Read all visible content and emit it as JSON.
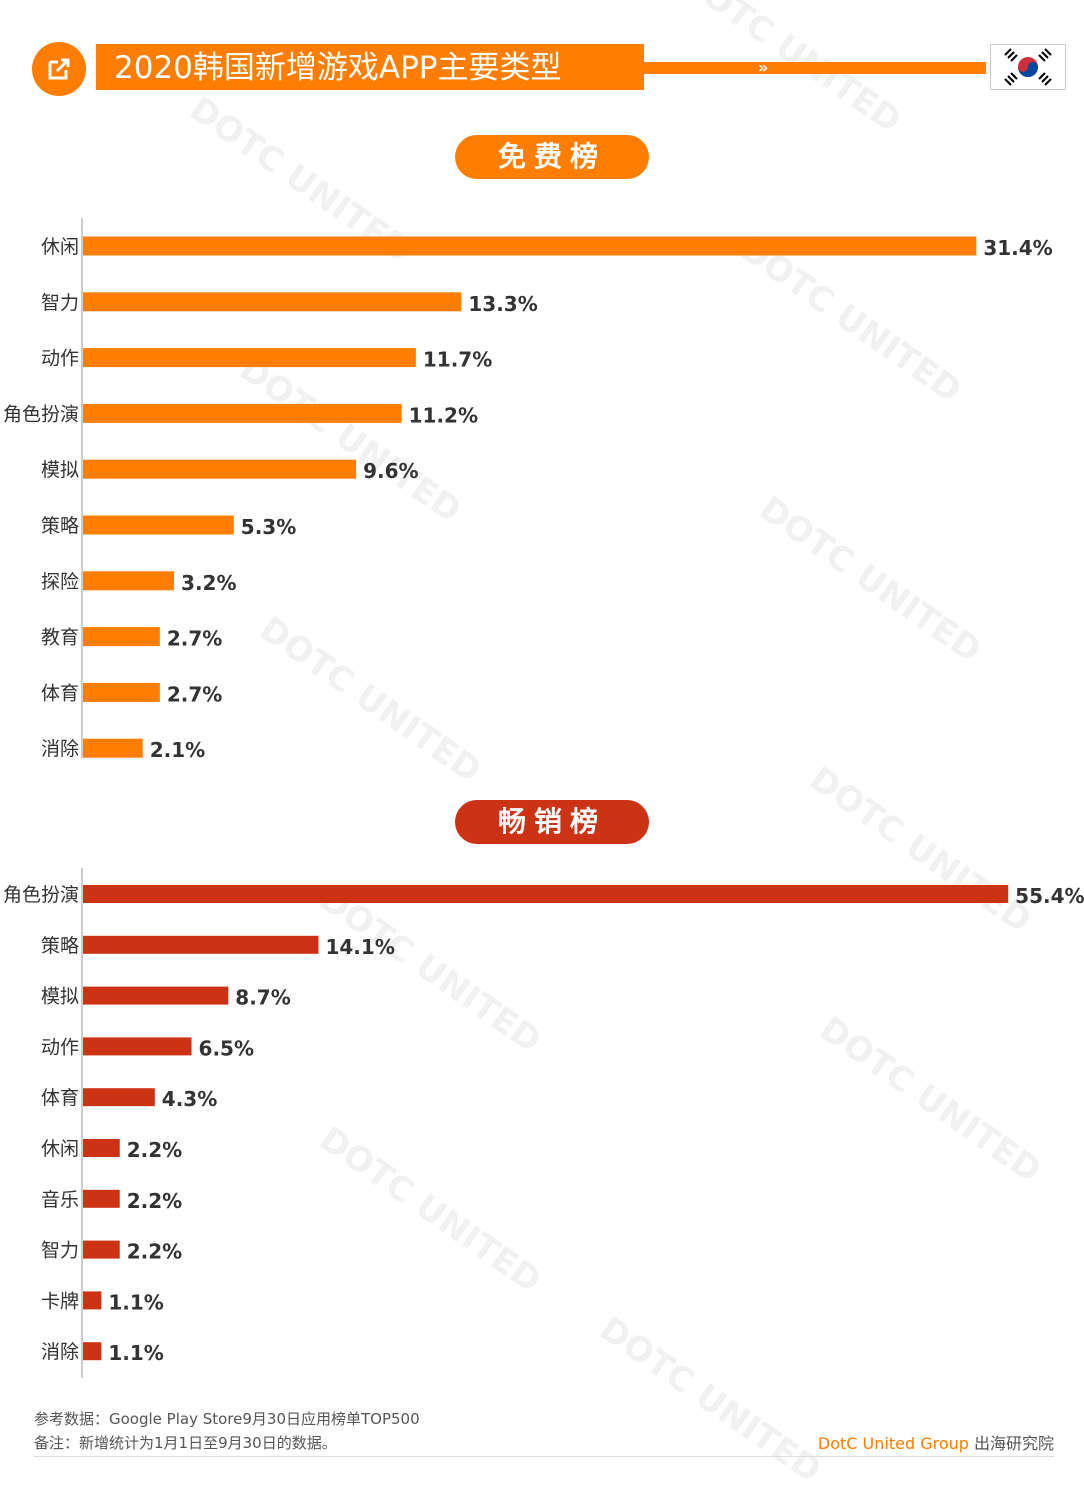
{
  "title": "2020韩国新增游戏APP主要类型",
  "colors": {
    "free": "#ff7d00",
    "gross": "#cc3314",
    "axis": "#cccccc",
    "label": "#333333"
  },
  "watermark": "DOTC UNITED",
  "footer": {
    "source": "参考数据：Google Play Store9月30日应用榜单TOP500",
    "note": "备注：新增统计为1月1日至9月30日的数据。",
    "brand": "DotC United Group",
    "brand_suffix": " 出海研究院"
  },
  "chart_data": [
    {
      "type": "bar",
      "orientation": "horizontal",
      "title": "免费榜",
      "categories": [
        "休闲",
        "智力",
        "动作",
        "角色扮演",
        "模拟",
        "策略",
        "探险",
        "教育",
        "体育",
        "消除"
      ],
      "values": [
        31.4,
        13.3,
        11.7,
        11.2,
        9.6,
        5.3,
        3.2,
        2.7,
        2.7,
        2.1
      ],
      "value_labels": [
        "31.4%",
        "13.3%",
        "11.7%",
        "11.2%",
        "9.6%",
        "5.3%",
        "3.2%",
        "2.7%",
        "2.7%",
        "2.1%"
      ],
      "unit": "%",
      "grid": false,
      "legend": "none"
    },
    {
      "type": "bar",
      "orientation": "horizontal",
      "title": "畅销榜",
      "categories": [
        "角色扮演",
        "策略",
        "模拟",
        "动作",
        "体育",
        "休闲",
        "音乐",
        "智力",
        "卡牌",
        "消除"
      ],
      "values": [
        55.4,
        14.1,
        8.7,
        6.5,
        4.3,
        2.2,
        2.2,
        2.2,
        1.1,
        1.1
      ],
      "value_labels": [
        "55.4%",
        "14.1%",
        "8.7%",
        "6.5%",
        "4.3%",
        "2.2%",
        "2.2%",
        "2.2%",
        "1.1%",
        "1.1%"
      ],
      "unit": "%",
      "grid": false,
      "legend": "none"
    }
  ]
}
